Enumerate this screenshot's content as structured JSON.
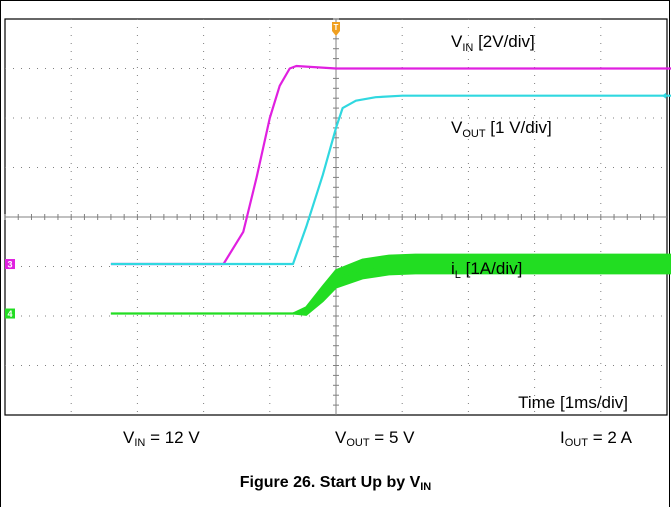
{
  "chart_data": {
    "type": "line",
    "title": "",
    "grid": true,
    "x_unit": "ms",
    "time_label": "Time [1ms/div]",
    "grid_divisions": {
      "x": 10,
      "y": 8
    },
    "series": [
      {
        "name": "V",
        "name_sub": "IN",
        "name_rest": " [2V/div]",
        "color": "#e020e0",
        "x": [
          -3.4,
          -1.7,
          -1.4,
          -1.2,
          -1.0,
          -0.85,
          -0.7,
          -0.6,
          0.0,
          2.0,
          5.3
        ],
        "y": [
          -0.95,
          -0.95,
          -0.3,
          0.8,
          2.0,
          2.65,
          3.0,
          3.05,
          3.0,
          3.0,
          3.0
        ]
      },
      {
        "name": "V",
        "name_sub": "OUT",
        "name_rest": " [1 V/div]",
        "color": "#30d8e0",
        "x": [
          -3.4,
          -0.65,
          -0.45,
          -0.2,
          0.0,
          0.1,
          0.3,
          0.6,
          1.0,
          5.3
        ],
        "y": [
          -0.95,
          -0.95,
          -0.2,
          0.85,
          1.8,
          2.2,
          2.35,
          2.42,
          2.45,
          2.45
        ]
      },
      {
        "name": "i",
        "name_sub": "L",
        "name_rest": " [1A/div]",
        "color": "#22dd22",
        "x": [
          -3.4,
          -0.65,
          -0.45,
          -0.2,
          0.0,
          0.4,
          0.8,
          1.2,
          5.3
        ],
        "y": [
          -1.95,
          -1.95,
          -1.9,
          -1.55,
          -1.25,
          -1.05,
          -0.97,
          -0.95,
          -0.95
        ],
        "ripple_div": [
          0.0,
          0.0,
          0.15,
          0.3,
          0.35,
          0.38,
          0.38,
          0.38,
          0.38
        ]
      }
    ]
  },
  "conditions": {
    "vin": {
      "a": "V",
      "sub": "IN",
      "b": " = 12 V"
    },
    "vout": {
      "a": "V",
      "sub": "OUT",
      "b": " = 5 V"
    },
    "iout": {
      "a": "I",
      "sub": "OUT",
      "b": " = 2 A"
    }
  },
  "caption": {
    "a": "Figure 26. Start Up by V",
    "sub": "IN"
  },
  "markers": {
    "trigger": "T",
    "ch3": "3",
    "ch4": "4"
  },
  "colors": {
    "trigger": "#f0a020",
    "ch3": "#e020e0",
    "ch4": "#22dd22",
    "grid": "#808080"
  }
}
